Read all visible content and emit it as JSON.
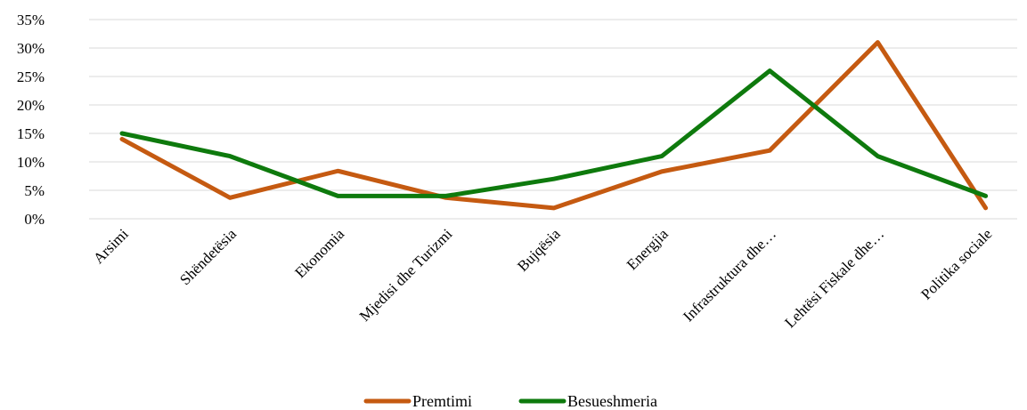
{
  "chart_data": {
    "type": "line",
    "title": "",
    "xlabel": "",
    "ylabel": "",
    "ylim": [
      0,
      35
    ],
    "y_ticks": [
      0,
      5,
      10,
      15,
      20,
      25,
      30,
      35
    ],
    "y_tick_labels": [
      "0%",
      "5%",
      "10%",
      "15%",
      "20%",
      "25%",
      "30%",
      "35%"
    ],
    "y_unit": "%",
    "grid": true,
    "legend_position": "bottom",
    "categories": [
      "Arsimi",
      "Shëndetësia",
      "Ekonomia",
      "Mjedisi dhe Turizmi",
      "Bujqësia",
      "Energjia",
      "Infrastruktura dhe…",
      "Lehtësi Fiskale dhe…",
      "Politika sociale"
    ],
    "series": [
      {
        "name": "Premtimi",
        "color": "#C55A11",
        "values": [
          14,
          3.7,
          8.4,
          3.7,
          1.9,
          8.3,
          12,
          31,
          1.9
        ]
      },
      {
        "name": "Besueshmeria",
        "color": "#0E7A0D",
        "values": [
          15,
          11,
          4,
          4,
          7,
          11,
          26,
          11,
          4
        ]
      }
    ]
  }
}
